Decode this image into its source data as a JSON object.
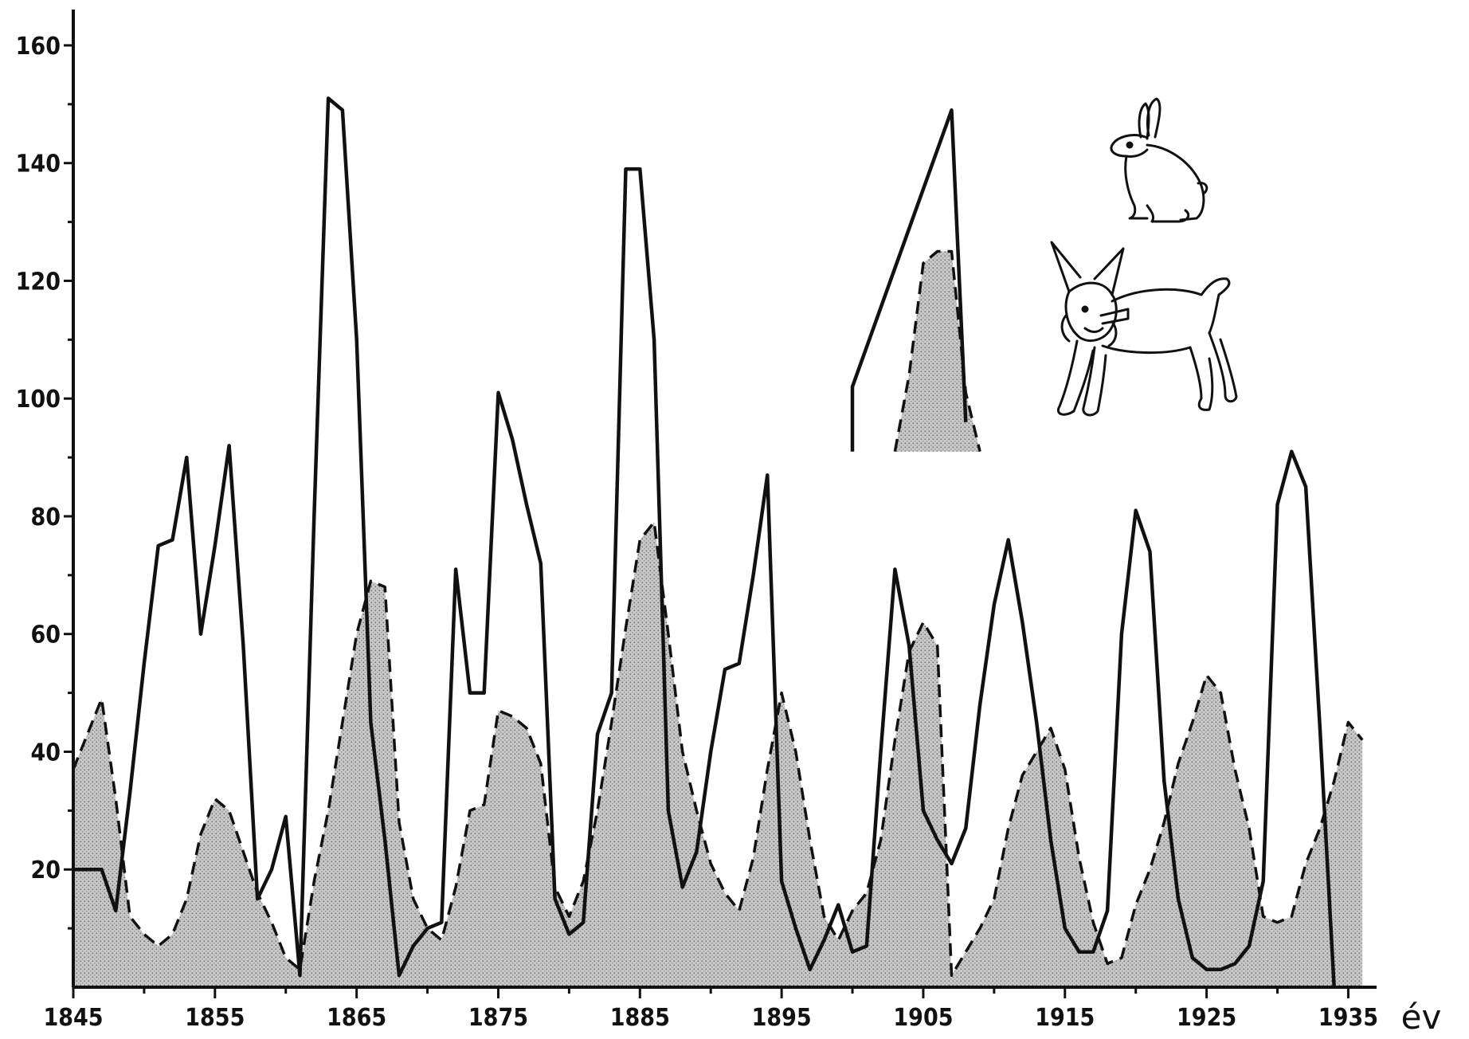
{
  "chart_data": {
    "type": "area",
    "title": "",
    "xlabel": "év",
    "ylabel": "",
    "xlim": [
      1845,
      1937
    ],
    "ylim": [
      0,
      165
    ],
    "x_ticks": [
      1845,
      1855,
      1865,
      1875,
      1885,
      1895,
      1905,
      1915,
      1925,
      1935
    ],
    "y_ticks": [
      20,
      40,
      60,
      80,
      100,
      120,
      140,
      160
    ],
    "grid": false,
    "legend": "icons top-right",
    "series": [
      {
        "style": "solid-line",
        "x": [
          1845,
          1847,
          1848,
          1849,
          1850,
          1851,
          1852,
          1853,
          1854,
          1855,
          1856,
          1857,
          1858,
          1859,
          1860,
          1861,
          1862,
          1863,
          1864,
          1865,
          1866,
          1867,
          1868,
          1869,
          1870,
          1871,
          1872,
          1873,
          1874,
          1875,
          1876,
          1877,
          1878,
          1879,
          1880,
          1881,
          1882,
          1883,
          1884,
          1885,
          1886,
          1887,
          1888,
          1889,
          1890,
          1891,
          1892,
          1893,
          1894,
          1895,
          1896,
          1897,
          1898,
          1899,
          1900,
          1901,
          1902,
          1903,
          1904,
          1905,
          1906,
          1907,
          1908,
          1909,
          1910,
          1911,
          1912,
          1913,
          1914,
          1915,
          1916,
          1917,
          1918,
          1919,
          1920,
          1921,
          1922,
          1923,
          1924,
          1925,
          1926,
          1927,
          1928,
          1929,
          1930,
          1931,
          1932,
          1933,
          1934
        ],
        "y": [
          20,
          20,
          13,
          33,
          55,
          75,
          76,
          90,
          60,
          75,
          92,
          58,
          15,
          20,
          29,
          2,
          80,
          151,
          149,
          110,
          45,
          25,
          2,
          7,
          10,
          11,
          71,
          50,
          50,
          101,
          93,
          82,
          72,
          15,
          9,
          11,
          43,
          50,
          139,
          139,
          110,
          30,
          17,
          23,
          40,
          54,
          55,
          70,
          87,
          18,
          10,
          3,
          8,
          14,
          6,
          7,
          40,
          71,
          58,
          30,
          25,
          21,
          27,
          48,
          65,
          76,
          62,
          45,
          25,
          10,
          6,
          6,
          13,
          60,
          81,
          74,
          35,
          15,
          5,
          3,
          3,
          4,
          7,
          18,
          82,
          91,
          85,
          44,
          0
        ]
      },
      {
        "style": "dashed-filled",
        "x": [
          1845,
          1846,
          1847,
          1848,
          1849,
          1850,
          1851,
          1852,
          1853,
          1854,
          1855,
          1856,
          1857,
          1858,
          1859,
          1860,
          1861,
          1862,
          1863,
          1864,
          1865,
          1866,
          1867,
          1868,
          1869,
          1870,
          1871,
          1872,
          1873,
          1874,
          1875,
          1876,
          1877,
          1878,
          1879,
          1880,
          1881,
          1882,
          1883,
          1884,
          1885,
          1886,
          1887,
          1888,
          1889,
          1890,
          1891,
          1892,
          1893,
          1894,
          1895,
          1896,
          1897,
          1898,
          1899,
          1900,
          1901,
          1902,
          1903,
          1904,
          1905,
          1906,
          1907,
          1908,
          1909,
          1910,
          1911,
          1912,
          1913,
          1914,
          1915,
          1916,
          1917,
          1918,
          1919,
          1920,
          1921,
          1922,
          1923,
          1924,
          1925,
          1926,
          1927,
          1928,
          1929,
          1930,
          1931,
          1932,
          1933,
          1934,
          1935,
          1936
        ],
        "y": [
          37,
          43,
          49,
          32,
          12,
          9,
          7,
          9,
          15,
          26,
          32,
          30,
          23,
          16,
          11,
          5,
          3,
          18,
          30,
          45,
          60,
          69,
          68,
          28,
          15,
          10,
          8,
          17,
          30,
          31,
          47,
          46,
          44,
          38,
          17,
          12,
          18,
          30,
          45,
          61,
          76,
          79,
          60,
          40,
          30,
          21,
          16,
          13,
          22,
          37,
          50,
          40,
          25,
          12,
          8,
          13,
          16,
          25,
          42,
          57,
          62,
          58,
          2,
          6,
          10,
          15,
          27,
          36,
          40,
          44,
          37,
          22,
          11,
          4,
          5,
          14,
          20,
          28,
          38,
          45,
          53,
          50,
          37,
          27,
          12,
          11,
          12,
          21,
          27,
          35,
          45,
          42
        ]
      },
      {
        "style": "solid-line",
        "x": [
          1900,
          1900,
          1907,
          1908
        ],
        "y": [
          91,
          102,
          149,
          96
        ]
      },
      {
        "style": "dashed-filled",
        "x": [
          1903,
          1904,
          1905,
          1906,
          1907,
          1908,
          1909
        ],
        "y": [
          91,
          104,
          123,
          125,
          125,
          101,
          91
        ]
      }
    ],
    "icons": [
      "hare-icon",
      "lynx-icon"
    ]
  }
}
